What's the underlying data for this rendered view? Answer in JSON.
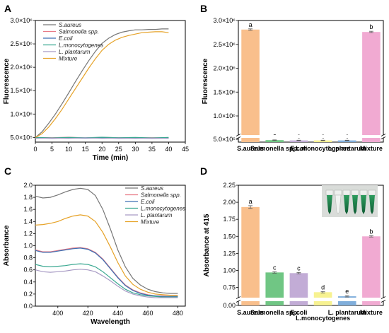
{
  "panels": {
    "A": {
      "letter": "A"
    },
    "B": {
      "letter": "B"
    },
    "C": {
      "letter": "C"
    },
    "D": {
      "letter": "D"
    }
  },
  "chart_data": [
    {
      "panel": "A",
      "type": "line",
      "xlabel": "Time (min)",
      "ylabel": "Fluorescence",
      "xlim": [
        0,
        45
      ],
      "ylim": [
        400000,
        3000000
      ],
      "xticks": [
        "0",
        "5",
        "10",
        "15",
        "20",
        "25",
        "30",
        "35",
        "40",
        "45"
      ],
      "yticks": [
        "5.0×10⁵",
        "1.0×10⁶",
        "1.5×10⁶",
        "2.0×10⁶",
        "2.5×10⁶",
        "3.0×10⁶"
      ],
      "legend_position": "top-left",
      "grid": false,
      "series": [
        {
          "name": "S.aureus",
          "color": "#777777",
          "x": [
            0,
            2,
            4,
            6,
            8,
            10,
            12,
            14,
            16,
            18,
            20,
            22,
            24,
            26,
            28,
            30,
            32,
            34,
            36,
            38,
            40
          ],
          "y": [
            500000,
            620000,
            800000,
            1000000,
            1220000,
            1450000,
            1690000,
            1920000,
            2140000,
            2340000,
            2510000,
            2620000,
            2700000,
            2750000,
            2780000,
            2800000,
            2800000,
            2810000,
            2810000,
            2820000,
            2820000
          ]
        },
        {
          "name": "Salmonella spp.",
          "color": "#e87a86",
          "x": [
            0,
            5,
            10,
            15,
            20,
            25,
            30,
            35,
            40
          ],
          "y": [
            500000,
            495000,
            505000,
            490000,
            500000,
            495000,
            490000,
            495000,
            490000
          ]
        },
        {
          "name": "E.coli",
          "color": "#3d6fb3",
          "x": [
            0,
            5,
            10,
            15,
            20,
            25,
            30,
            35,
            40
          ],
          "y": [
            490000,
            480000,
            490000,
            485000,
            490000,
            480000,
            485000,
            480000,
            485000
          ]
        },
        {
          "name": "L.monocytogenes",
          "color": "#3aa891",
          "x": [
            0,
            5,
            10,
            15,
            20,
            25,
            30,
            35,
            40
          ],
          "y": [
            500000,
            490000,
            500000,
            495000,
            505000,
            495000,
            500000,
            490000,
            500000
          ]
        },
        {
          "name": "L. plantarum",
          "color": "#a89bc4",
          "x": [
            0,
            5,
            10,
            15,
            20,
            25,
            30,
            35,
            40
          ],
          "y": [
            480000,
            485000,
            480000,
            490000,
            480000,
            485000,
            480000,
            485000,
            480000
          ]
        },
        {
          "name": "Mixture",
          "color": "#e6a227",
          "x": [
            0,
            2,
            4,
            6,
            8,
            10,
            12,
            14,
            16,
            18,
            20,
            22,
            24,
            26,
            28,
            30,
            32,
            34,
            36,
            38,
            40
          ],
          "y": [
            500000,
            580000,
            720000,
            900000,
            1100000,
            1320000,
            1540000,
            1760000,
            1980000,
            2180000,
            2360000,
            2490000,
            2580000,
            2640000,
            2680000,
            2710000,
            2740000,
            2750000,
            2760000,
            2760000,
            2740000
          ]
        }
      ]
    },
    {
      "panel": "B",
      "type": "bar",
      "ylabel": "Fluorescence",
      "ylim": [
        400000,
        3000000
      ],
      "axis_break": true,
      "yticks": [
        "5.0×10⁵",
        "1.0×10⁶",
        "1.5×10⁶",
        "2.0×10⁶",
        "2.5×10⁶",
        "3.0×10⁶"
      ],
      "categories": [
        "S.aureus",
        "Salmonella spp.",
        "E.coli",
        "L.monocytogenes",
        "L. plantarum",
        "Mixture"
      ],
      "values": [
        2810000,
        470000,
        460000,
        460000,
        460000,
        2760000
      ],
      "errors": [
        15000,
        8000,
        8000,
        8000,
        8000,
        15000
      ],
      "letters": [
        "a",
        "c",
        "c",
        "c",
        "c",
        "b"
      ],
      "colors": [
        "#f9bf8c",
        "#70c684",
        "#c2acd6",
        "#f7f291",
        "#80aedb",
        "#f1aad2"
      ]
    },
    {
      "panel": "C",
      "type": "line",
      "xlabel": "Wavelength",
      "ylabel": "Absorbance",
      "xlim": [
        385,
        485
      ],
      "ylim": [
        0,
        2.0
      ],
      "xticks": [
        "400",
        "420",
        "440",
        "460",
        "480"
      ],
      "yticks": [
        "0.0",
        "0.2",
        "0.4",
        "0.6",
        "0.8",
        "1.0",
        "1.2",
        "1.4",
        "1.6",
        "1.8",
        "2.0"
      ],
      "legend_position": "top-right",
      "grid": false,
      "series": [
        {
          "name": "S.aureus",
          "color": "#777777",
          "x": [
            385,
            390,
            395,
            400,
            405,
            410,
            415,
            420,
            425,
            430,
            435,
            440,
            445,
            450,
            455,
            460,
            465,
            470,
            475,
            480
          ],
          "y": [
            1.82,
            1.79,
            1.8,
            1.84,
            1.89,
            1.93,
            1.95,
            1.93,
            1.83,
            1.6,
            1.28,
            0.93,
            0.65,
            0.46,
            0.35,
            0.28,
            0.24,
            0.22,
            0.21,
            0.21
          ]
        },
        {
          "name": "Salmonella spp.",
          "color": "#e87a86",
          "x": [
            385,
            390,
            395,
            400,
            405,
            410,
            415,
            420,
            425,
            430,
            435,
            440,
            445,
            450,
            455,
            460,
            465,
            470,
            475,
            480
          ],
          "y": [
            0.93,
            0.9,
            0.9,
            0.92,
            0.94,
            0.96,
            0.97,
            0.95,
            0.89,
            0.78,
            0.63,
            0.48,
            0.35,
            0.27,
            0.22,
            0.19,
            0.17,
            0.17,
            0.16,
            0.16
          ]
        },
        {
          "name": "E.coli",
          "color": "#3d6fb3",
          "x": [
            385,
            390,
            395,
            400,
            405,
            410,
            415,
            420,
            425,
            430,
            435,
            440,
            445,
            450,
            455,
            460,
            465,
            470,
            475,
            480
          ],
          "y": [
            0.92,
            0.89,
            0.89,
            0.91,
            0.93,
            0.95,
            0.96,
            0.94,
            0.88,
            0.77,
            0.62,
            0.47,
            0.34,
            0.26,
            0.21,
            0.18,
            0.17,
            0.16,
            0.16,
            0.16
          ]
        },
        {
          "name": "L.monocytogenes",
          "color": "#3aa891",
          "x": [
            385,
            390,
            395,
            400,
            405,
            410,
            415,
            420,
            425,
            430,
            435,
            440,
            445,
            450,
            455,
            460,
            465,
            470,
            475,
            480
          ],
          "y": [
            0.69,
            0.66,
            0.65,
            0.66,
            0.67,
            0.69,
            0.7,
            0.69,
            0.65,
            0.57,
            0.47,
            0.37,
            0.28,
            0.22,
            0.19,
            0.17,
            0.16,
            0.15,
            0.15,
            0.15
          ]
        },
        {
          "name": "L. plantarum",
          "color": "#a89bc4",
          "x": [
            385,
            390,
            395,
            400,
            405,
            410,
            415,
            420,
            425,
            430,
            435,
            440,
            445,
            450,
            455,
            460,
            465,
            470,
            475,
            480
          ],
          "y": [
            0.6,
            0.57,
            0.56,
            0.57,
            0.58,
            0.6,
            0.61,
            0.6,
            0.57,
            0.5,
            0.42,
            0.33,
            0.25,
            0.2,
            0.17,
            0.15,
            0.14,
            0.14,
            0.14,
            0.14
          ]
        },
        {
          "name": "Mixture",
          "color": "#e6a227",
          "x": [
            385,
            390,
            395,
            400,
            405,
            410,
            415,
            420,
            425,
            430,
            435,
            440,
            445,
            450,
            455,
            460,
            465,
            470,
            475,
            480
          ],
          "y": [
            1.34,
            1.35,
            1.37,
            1.4,
            1.45,
            1.49,
            1.51,
            1.49,
            1.4,
            1.22,
            0.98,
            0.72,
            0.5,
            0.36,
            0.28,
            0.23,
            0.2,
            0.19,
            0.18,
            0.18
          ]
        }
      ]
    },
    {
      "panel": "D",
      "type": "bar",
      "ylabel": "Absorbance at 415",
      "ylim": [
        0,
        2.25
      ],
      "axis_break": true,
      "yticks": [
        "0.00",
        "0.75",
        "1.00",
        "1.25",
        "1.50",
        "1.75",
        "2.00",
        "2.25"
      ],
      "categories": [
        "S.aureus",
        "Salmonella spp.",
        "E.coli",
        "L.monocytogenes",
        "L. plantarum",
        "Mixture"
      ],
      "values": [
        1.93,
        0.97,
        0.96,
        0.68,
        0.62,
        1.5
      ],
      "errors": [
        0.02,
        0.01,
        0.01,
        0.01,
        0.01,
        0.01
      ],
      "letters": [
        "a",
        "c",
        "c",
        "d",
        "e",
        "b"
      ],
      "colors": [
        "#f9bf8c",
        "#70c684",
        "#c2acd6",
        "#f7f291",
        "#80aedb",
        "#f1aad2"
      ]
    }
  ]
}
